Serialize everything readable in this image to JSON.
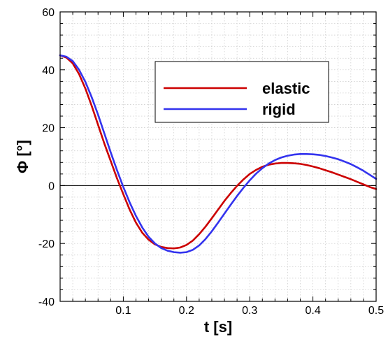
{
  "chart_data": {
    "type": "line",
    "title": "",
    "xlabel": "t [s]",
    "ylabel": "Φ [°]",
    "xlim": [
      0.0,
      0.5
    ],
    "ylim": [
      -40,
      60
    ],
    "xticks": [
      0.1,
      0.2,
      0.3,
      0.4,
      0.5
    ],
    "xtick_labels": [
      "0.1",
      "0.2",
      "0.3",
      "0.4",
      "0.5"
    ],
    "yticks": [
      -40,
      -20,
      0,
      20,
      40,
      60
    ],
    "ytick_labels": [
      "-40",
      "-20",
      "0",
      "20",
      "40",
      "60"
    ],
    "grid": true,
    "zero_line": true,
    "legend": {
      "placement": "top-right",
      "entries": [
        "elastic",
        "rigid"
      ]
    },
    "series": [
      {
        "name": "elastic",
        "color": "#cc0000",
        "x": [
          0.0,
          0.01,
          0.02,
          0.03,
          0.04,
          0.05,
          0.06,
          0.07,
          0.08,
          0.09,
          0.1,
          0.11,
          0.12,
          0.13,
          0.14,
          0.15,
          0.16,
          0.17,
          0.18,
          0.19,
          0.2,
          0.21,
          0.22,
          0.23,
          0.24,
          0.25,
          0.26,
          0.27,
          0.28,
          0.29,
          0.3,
          0.31,
          0.32,
          0.33,
          0.34,
          0.35,
          0.36,
          0.37,
          0.38,
          0.39,
          0.4,
          0.41,
          0.42,
          0.43,
          0.44,
          0.45,
          0.46,
          0.47,
          0.48,
          0.49,
          0.5
        ],
        "y": [
          45.0,
          44.2,
          42.2,
          38.5,
          33.5,
          27.5,
          21.0,
          14.5,
          8.5,
          2.5,
          -3.0,
          -8.3,
          -12.8,
          -16.3,
          -18.7,
          -20.3,
          -21.2,
          -21.6,
          -21.7,
          -21.4,
          -20.5,
          -19.0,
          -16.8,
          -14.2,
          -11.3,
          -8.3,
          -5.3,
          -2.6,
          -0.1,
          2.1,
          4.0,
          5.4,
          6.5,
          7.2,
          7.6,
          7.8,
          7.8,
          7.7,
          7.5,
          7.1,
          6.6,
          6.0,
          5.3,
          4.6,
          3.8,
          3.0,
          2.2,
          1.3,
          0.4,
          -0.5,
          -1.2
        ]
      },
      {
        "name": "rigid",
        "color": "#3333ee",
        "x": [
          0.0,
          0.01,
          0.02,
          0.03,
          0.04,
          0.05,
          0.06,
          0.07,
          0.08,
          0.09,
          0.1,
          0.11,
          0.12,
          0.13,
          0.14,
          0.15,
          0.16,
          0.17,
          0.18,
          0.19,
          0.2,
          0.21,
          0.22,
          0.23,
          0.24,
          0.25,
          0.26,
          0.27,
          0.28,
          0.29,
          0.3,
          0.31,
          0.32,
          0.33,
          0.34,
          0.35,
          0.36,
          0.37,
          0.38,
          0.39,
          0.4,
          0.41,
          0.42,
          0.43,
          0.44,
          0.45,
          0.46,
          0.47,
          0.48,
          0.49,
          0.5
        ],
        "y": [
          45.0,
          44.5,
          43.0,
          40.0,
          35.8,
          30.5,
          24.5,
          18.0,
          11.5,
          5.3,
          -0.5,
          -5.8,
          -10.5,
          -14.5,
          -17.7,
          -20.0,
          -21.6,
          -22.5,
          -23.0,
          -23.2,
          -23.0,
          -22.2,
          -20.7,
          -18.5,
          -15.8,
          -12.8,
          -9.7,
          -6.6,
          -3.6,
          -0.8,
          1.8,
          4.1,
          6.0,
          7.6,
          8.8,
          9.7,
          10.3,
          10.7,
          10.9,
          10.9,
          10.8,
          10.6,
          10.2,
          9.7,
          9.1,
          8.3,
          7.4,
          6.3,
          5.1,
          3.7,
          2.3
        ]
      }
    ]
  }
}
